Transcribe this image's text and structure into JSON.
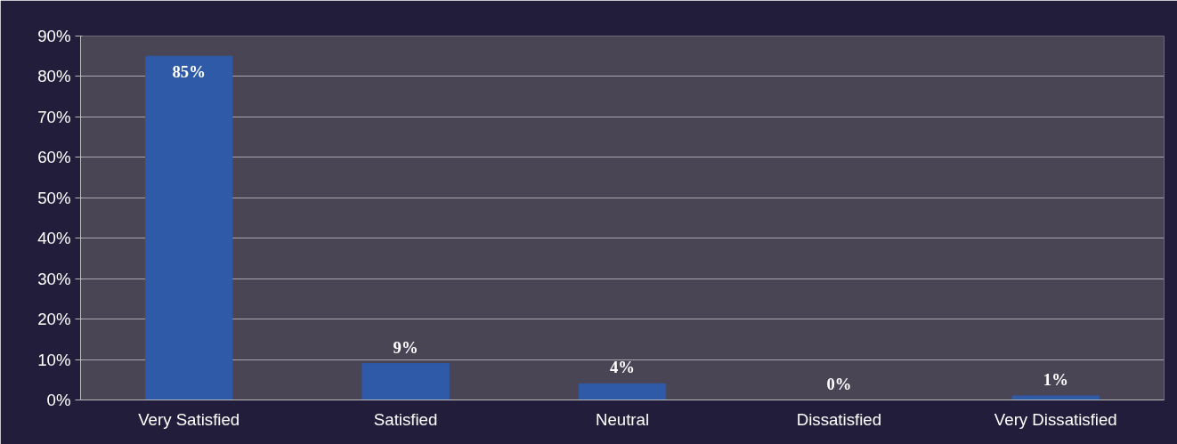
{
  "chart_data": {
    "type": "bar",
    "categories": [
      "Very Satisfied",
      "Satisfied",
      "Neutral",
      "Dissatisfied",
      "Very Dissatisfied"
    ],
    "values": [
      85,
      9,
      4,
      0,
      1
    ],
    "color": "#2e5aa8",
    "ylim": [
      0,
      90
    ],
    "yticks": [
      {
        "value": 0,
        "label": "0%"
      },
      {
        "value": 10,
        "label": "10%"
      },
      {
        "value": 20,
        "label": "20%"
      },
      {
        "value": 30,
        "label": "30%"
      },
      {
        "value": 40,
        "label": "40%"
      },
      {
        "value": 50,
        "label": "50%"
      },
      {
        "value": 60,
        "label": "60%"
      },
      {
        "value": 70,
        "label": "70%"
      },
      {
        "value": 80,
        "label": "80%"
      },
      {
        "value": 90,
        "label": "90%"
      }
    ],
    "value_labels": [
      "85%",
      "9%",
      "4%",
      "0%",
      "1%"
    ],
    "grid": "y"
  }
}
